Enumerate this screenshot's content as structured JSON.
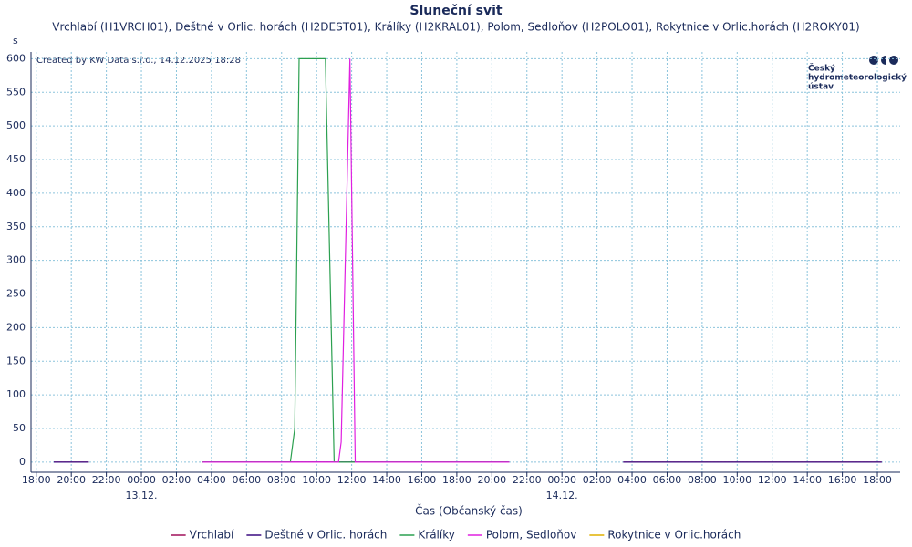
{
  "chart_data": {
    "type": "line",
    "title": "Sluneční svit",
    "subtitle": "Vrchlabí (H1VRCH01), Deštné v Orlic. horách (H2DEST01), Králíky (H2KRAL01), Polom, Sedloňov (H2POLO01), Rokytnice v Orlic.horách (H2ROKY01)",
    "y_label": "s",
    "x_label": "Čas (Občanský čas)",
    "credit": "Created by KW Data s.r.o., 14.12.2025 18:28",
    "logo": [
      "Český",
      "hydrometeorologický",
      "ústav"
    ],
    "xlim": [
      -6.3,
      43.3
    ],
    "ylim": [
      -15,
      610
    ],
    "yticks": [
      0,
      50,
      100,
      150,
      200,
      250,
      300,
      350,
      400,
      450,
      500,
      550,
      600
    ],
    "xticks": [
      {
        "value": -6,
        "label": "18:00"
      },
      {
        "value": -4,
        "label": "20:00"
      },
      {
        "value": -2,
        "label": "22:00"
      },
      {
        "value": 0,
        "label": "00:00"
      },
      {
        "value": 2,
        "label": "02:00"
      },
      {
        "value": 4,
        "label": "04:00"
      },
      {
        "value": 6,
        "label": "06:00"
      },
      {
        "value": 8,
        "label": "08:00"
      },
      {
        "value": 10,
        "label": "10:00"
      },
      {
        "value": 12,
        "label": "12:00"
      },
      {
        "value": 14,
        "label": "14:00"
      },
      {
        "value": 16,
        "label": "16:00"
      },
      {
        "value": 18,
        "label": "18:00"
      },
      {
        "value": 20,
        "label": "20:00"
      },
      {
        "value": 22,
        "label": "22:00"
      },
      {
        "value": 24,
        "label": "00:00"
      },
      {
        "value": 26,
        "label": "02:00"
      },
      {
        "value": 28,
        "label": "04:00"
      },
      {
        "value": 30,
        "label": "06:00"
      },
      {
        "value": 32,
        "label": "08:00"
      },
      {
        "value": 34,
        "label": "10:00"
      },
      {
        "value": 36,
        "label": "12:00"
      },
      {
        "value": 38,
        "label": "14:00"
      },
      {
        "value": 40,
        "label": "16:00"
      },
      {
        "value": 42,
        "label": "18:00"
      }
    ],
    "date_labels": [
      {
        "value": 0,
        "label": "13.12."
      },
      {
        "value": 24,
        "label": "14.12."
      }
    ],
    "grid": true,
    "series": [
      {
        "name": "Vrchlabí",
        "color": "#a0105a",
        "x": [
          -5,
          -3,
          -1,
          3.5,
          21,
          24,
          27.5,
          42.25
        ],
        "values": [
          0,
          0,
          null,
          0,
          0,
          null,
          0,
          0
        ]
      },
      {
        "name": "Deštné v Orlic. horách",
        "color": "#3a0a80",
        "x": [
          -5,
          -3,
          -1,
          3.5,
          21,
          24,
          27.5,
          42.25
        ],
        "values": [
          0,
          0,
          null,
          0,
          0,
          null,
          0,
          0
        ]
      },
      {
        "name": "Králíky",
        "color": "#2ca050",
        "x": [
          3.5,
          8.5,
          8.75,
          9.0,
          10.5,
          11.0,
          21.0
        ],
        "values": [
          0,
          0,
          50,
          600,
          600,
          0,
          0
        ]
      },
      {
        "name": "Polom, Sedloňov",
        "color": "#e020e0",
        "x": [
          3.5,
          11.25,
          11.4,
          11.9,
          12.2,
          21.0
        ],
        "values": [
          0,
          0,
          30,
          600,
          0,
          0
        ]
      },
      {
        "name": "Rokytnice v Orlic.horách",
        "color": "#e0b000",
        "x": [],
        "values": []
      }
    ]
  }
}
